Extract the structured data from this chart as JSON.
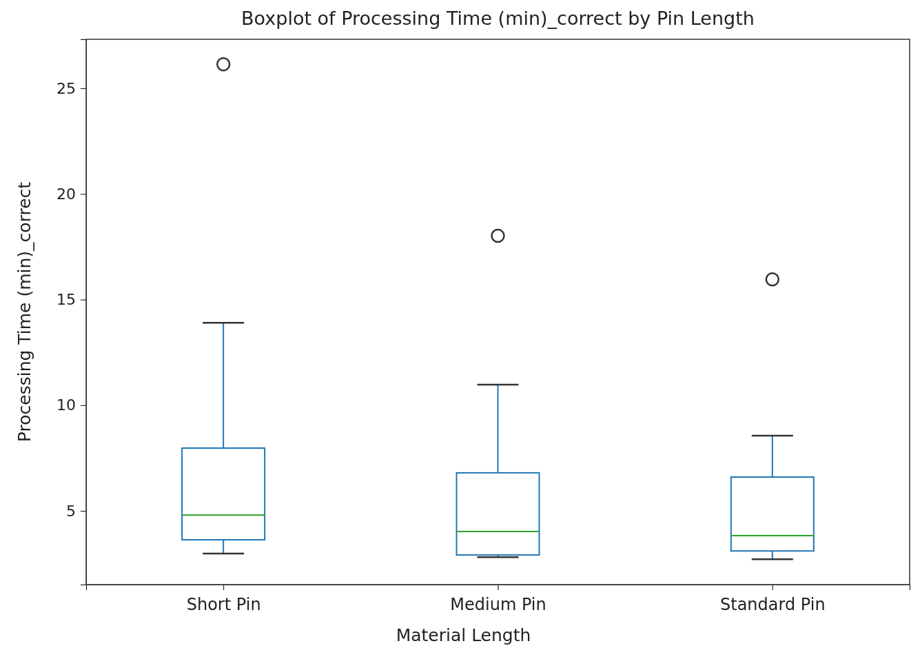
{
  "chart_data": {
    "type": "box",
    "title": "Boxplot of Processing Time (min)_correct by Pin Length",
    "xlabel": "Material Length",
    "ylabel": "Processing Time (min)_correct",
    "categories": [
      "Short Pin",
      "Medium Pin",
      "Standard Pin"
    ],
    "color": "#1f77b4",
    "boxes": [
      {
        "low": 2.98,
        "q1": 3.63,
        "median": 4.8,
        "q3": 7.97,
        "high": 13.9,
        "outliers": [
          26.14
        ]
      },
      {
        "low": 2.81,
        "q1": 2.91,
        "median": 4.02,
        "q3": 6.8,
        "high": 10.97,
        "outliers": [
          18.02
        ]
      },
      {
        "low": 2.71,
        "q1": 3.1,
        "median": 3.83,
        "q3": 6.6,
        "high": 8.56,
        "outliers": [
          15.96
        ]
      }
    ],
    "ylim": [
      1.51,
      27.32
    ],
    "yticks": [
      5,
      10,
      15,
      20,
      25
    ],
    "grid": false
  }
}
